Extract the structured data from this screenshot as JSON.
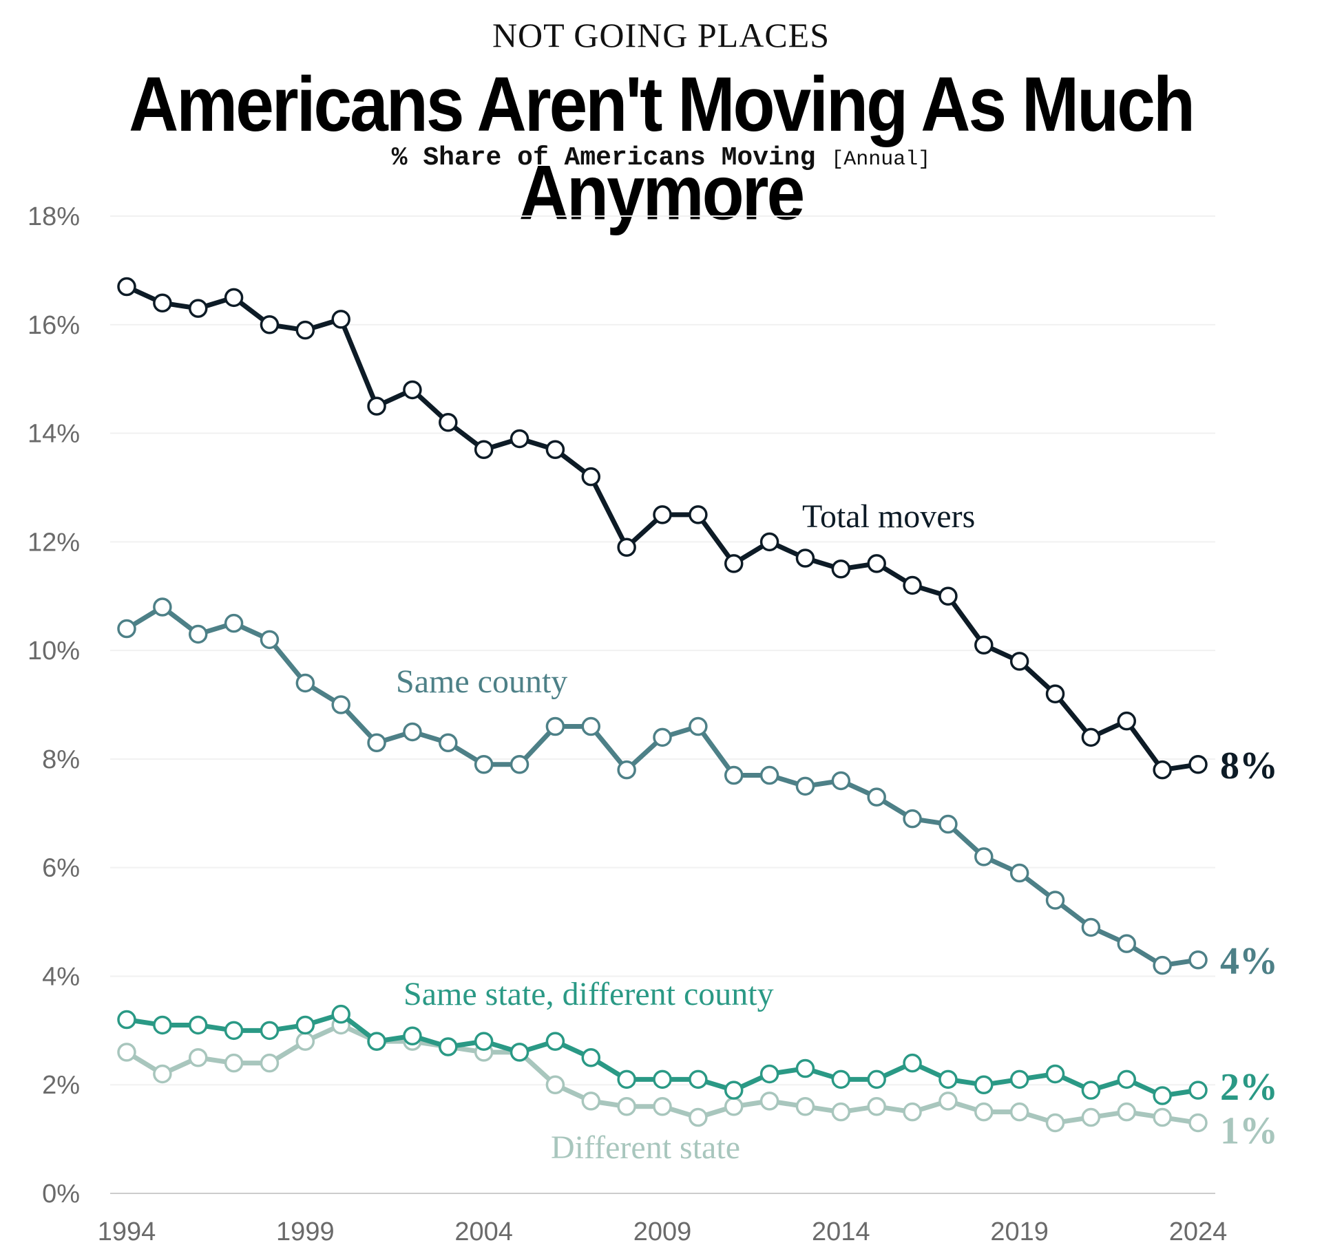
{
  "header": {
    "kicker": "NOT GOING PLACES",
    "title": "Americans Aren't Moving As Much Anymore",
    "subtitle": "% Share of Americans Moving",
    "subtitle_note": "[Annual]"
  },
  "chart_data": {
    "type": "line",
    "x": [
      1994,
      1995,
      1996,
      1997,
      1998,
      1999,
      2000,
      2001,
      2002,
      2003,
      2004,
      2005,
      2006,
      2007,
      2008,
      2009,
      2010,
      2011,
      2012,
      2013,
      2014,
      2015,
      2016,
      2017,
      2018,
      2019,
      2020,
      2021,
      2022,
      2023,
      2024
    ],
    "x_ticks": [
      1994,
      1999,
      2004,
      2009,
      2014,
      2019,
      2024
    ],
    "y_ticks": [
      0,
      2,
      4,
      6,
      8,
      10,
      12,
      14,
      16,
      18
    ],
    "y_tick_format": "%",
    "ylim": [
      0,
      18
    ],
    "grid": true,
    "legend": "none (direct labels)",
    "series": [
      {
        "name": "Total movers",
        "color": "#0d1b26",
        "end_label": "8%",
        "values": [
          16.7,
          16.4,
          16.3,
          16.5,
          16.0,
          15.9,
          16.1,
          14.5,
          14.8,
          14.2,
          13.7,
          13.9,
          13.7,
          13.2,
          11.9,
          12.5,
          12.5,
          11.6,
          12.0,
          11.7,
          11.5,
          11.6,
          11.2,
          11.0,
          10.1,
          9.8,
          9.2,
          8.4,
          8.7,
          7.8,
          7.9
        ]
      },
      {
        "name": "Same county",
        "color": "#4d8087",
        "end_label": "4%",
        "values": [
          10.4,
          10.8,
          10.3,
          10.5,
          10.2,
          9.4,
          9.0,
          8.3,
          8.5,
          8.3,
          7.9,
          7.9,
          8.6,
          8.6,
          7.8,
          8.4,
          8.6,
          7.7,
          7.7,
          7.5,
          7.6,
          7.3,
          6.9,
          6.8,
          6.2,
          5.9,
          5.4,
          4.9,
          4.6,
          4.2,
          4.3
        ]
      },
      {
        "name": "Same state, different county",
        "color": "#2a9985",
        "end_label": "2%",
        "values": [
          3.2,
          3.1,
          3.1,
          3.0,
          3.0,
          3.1,
          3.3,
          2.8,
          2.9,
          2.7,
          2.8,
          2.6,
          2.8,
          2.5,
          2.1,
          2.1,
          2.1,
          1.9,
          2.2,
          2.3,
          2.1,
          2.1,
          2.4,
          2.1,
          2.0,
          2.1,
          2.2,
          1.9,
          2.1,
          1.8,
          1.9
        ]
      },
      {
        "name": "Different state",
        "color": "#a8c6bd",
        "end_label": "1%",
        "values": [
          2.6,
          2.2,
          2.5,
          2.4,
          2.4,
          2.8,
          3.1,
          2.8,
          2.8,
          2.7,
          2.6,
          2.6,
          2.0,
          1.7,
          1.6,
          1.6,
          1.4,
          1.6,
          1.7,
          1.6,
          1.5,
          1.6,
          1.5,
          1.7,
          1.5,
          1.5,
          1.3,
          1.4,
          1.5,
          1.4,
          1.3
        ]
      }
    ]
  }
}
